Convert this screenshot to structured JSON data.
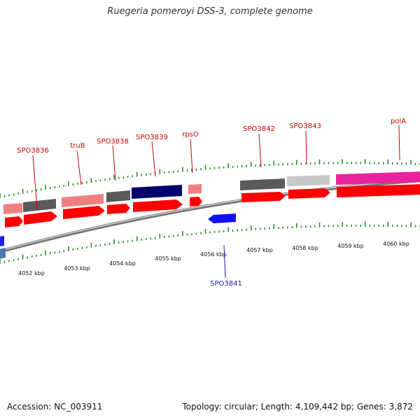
{
  "title": "Ruegeria pomeroyi DSS-3, complete genome",
  "accession_text": "Accession: NC_003911",
  "summary_text": "Topology: circular; Length: 4,109,442 bp; Genes: 3,872",
  "colors": {
    "backbone": "#8a8a8a",
    "tick": "#1a8a1a",
    "forward_label": "#cc0000",
    "reverse_label": "#1a1aaa",
    "cds_red": "#ff0000",
    "pink": "#f08080",
    "gray": "#555555",
    "navy": "#00006e",
    "lightgray": "#c8c8c8",
    "magenta": "#e8239c",
    "blue": "#1010ff"
  },
  "chart_data": {
    "type": "genome_map",
    "axis_unit": "kbp",
    "axis_ticks": [
      {
        "value": 4052,
        "label": "4052 kbp"
      },
      {
        "value": 4053,
        "label": "4053 kbp"
      },
      {
        "value": 4054,
        "label": "4054 kbp"
      },
      {
        "value": 4055,
        "label": "4055 kbp"
      },
      {
        "value": 4056,
        "label": "4056 kbp"
      },
      {
        "value": 4057,
        "label": "4057 kbp"
      },
      {
        "value": 4058,
        "label": "4058 kbp"
      },
      {
        "value": 4059,
        "label": "4059 kbp"
      },
      {
        "value": 4060,
        "label": "4060 kbp"
      }
    ],
    "view_range_kbp": [
      4051.6,
      4060.9
    ],
    "gene_labels": [
      {
        "name": "SPO3836",
        "strand": "+",
        "at": 4052.4
      },
      {
        "name": "truB",
        "strand": "+",
        "at": 4053.3
      },
      {
        "name": "SPO3838",
        "strand": "+",
        "at": 4054.0
      },
      {
        "name": "SPO3839",
        "strand": "+",
        "at": 4054.9
      },
      {
        "name": "rpsO",
        "strand": "+",
        "at": 4055.6
      },
      {
        "name": "SPO3841",
        "strand": "-",
        "at": 4056.5
      },
      {
        "name": "SPO3842",
        "strand": "+",
        "at": 4057.3
      },
      {
        "name": "SPO3843",
        "strand": "+",
        "at": 4058.3
      },
      {
        "name": "polA",
        "strand": "+",
        "at": 4060.4
      }
    ]
  }
}
